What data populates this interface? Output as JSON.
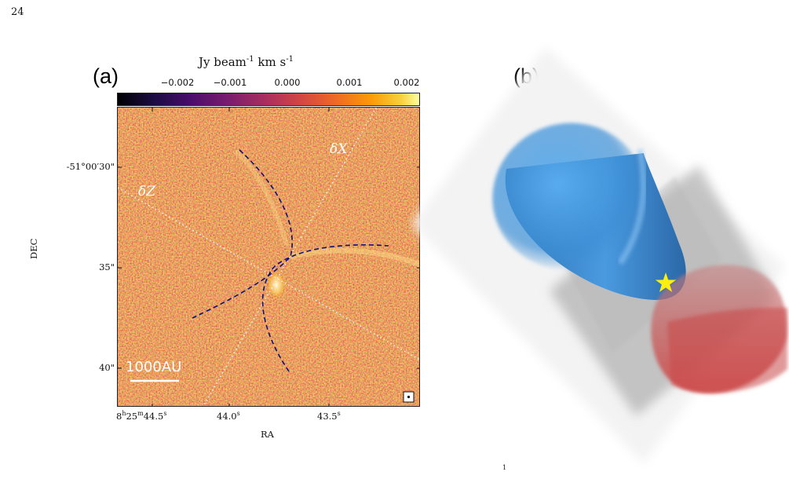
{
  "page_number": "24",
  "panel_a": {
    "label": "(a)",
    "colorbar": {
      "title_parts": [
        "Jy beam",
        "-1",
        " km s",
        "-1"
      ],
      "ticks": [
        "−0.002",
        "−0.001",
        "0.000",
        "0.001",
        "0.002"
      ],
      "colormap": "inferno"
    },
    "dec_ticks": [
      "-51°00′30\"",
      "35\"",
      "40\""
    ],
    "ra_ticks": [
      {
        "base": "8",
        "h": "h",
        "mid": "25",
        "m": "m",
        "tail": "44.5",
        "s": "s"
      },
      {
        "base": "",
        "h": "",
        "mid": "",
        "m": "",
        "tail": "44.0",
        "s": "s"
      },
      {
        "base": "",
        "h": "",
        "mid": "",
        "m": "",
        "tail": "43.5",
        "s": "s"
      }
    ],
    "xlabel": "RA",
    "ylabel": "DEC",
    "axis_labels": {
      "x": "δX",
      "z": "δZ"
    },
    "scale_bar": "1000AU"
  },
  "panel_b": {
    "label": "(b)",
    "colors": {
      "blue_lobe": "#3a86cc",
      "red_lobe": "#c4484c",
      "star": "#ffee11",
      "box": "#888888"
    }
  },
  "footer_mark": "1"
}
